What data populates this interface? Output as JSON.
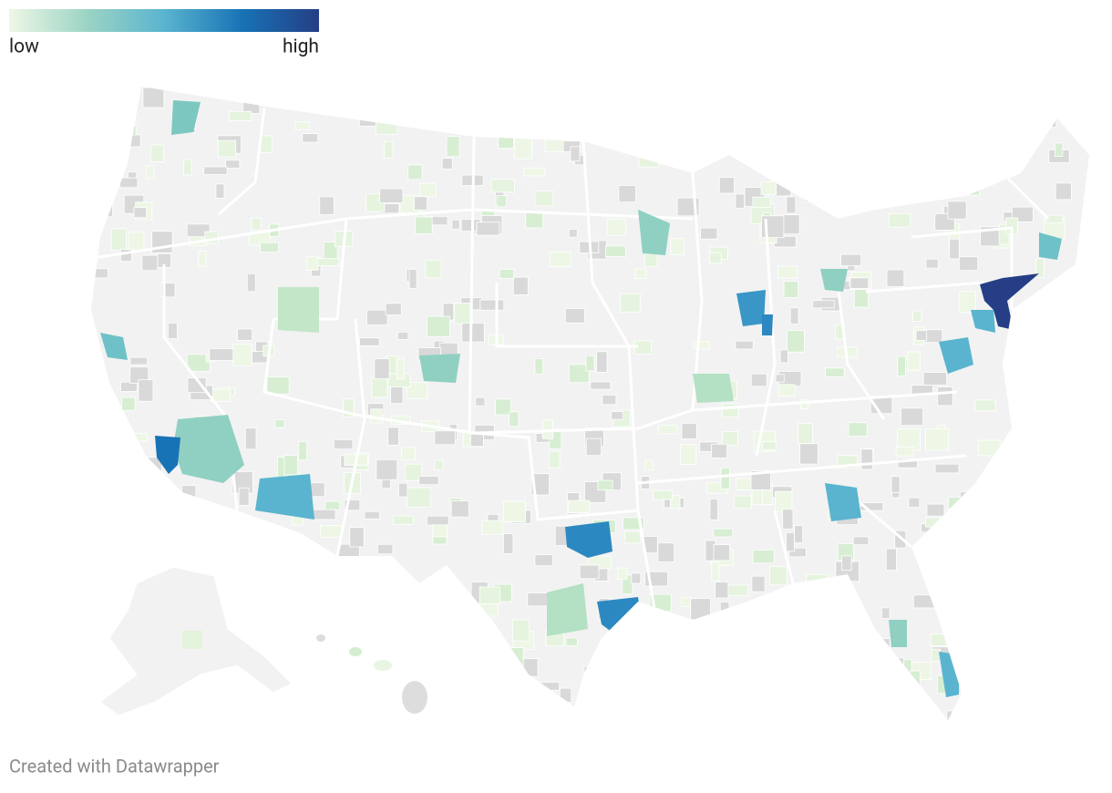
{
  "legend": {
    "low_label": "low",
    "high_label": "high",
    "colors": [
      "#eef7e6",
      "#9cd4c4",
      "#5ab4cf",
      "#1873b6",
      "#253e85"
    ]
  },
  "footer": "Created with Datawrapper"
}
